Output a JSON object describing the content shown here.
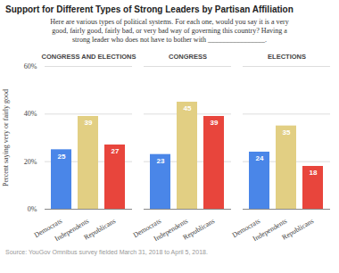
{
  "chart_data": {
    "type": "bar",
    "title": "Support for Different Types of Strong Leaders by Partisan Affiliation",
    "subtitle": "Here are various types of political systems. For each one, would you say it is a very good, fairly good, fairly bad, or very bad way of governing this country? Having a strong leader who does not have to bother with ________________.",
    "y_label": "Percent saying very or fairly good",
    "source": "Source: YouGov Omnibus survey fielded March 31, 2018 to April 5, 2018.",
    "categories": [
      "CONGRESS AND ELECTIONS",
      "CONGRESS",
      "ELECTIONS"
    ],
    "series": [
      {
        "name": "Democrats",
        "color": "#4a86e8",
        "values": [
          25,
          23,
          24
        ]
      },
      {
        "name": "Independents",
        "color": "#e2cf83",
        "values": [
          39,
          45,
          35
        ]
      },
      {
        "name": "Republicans",
        "color": "#e8453c",
        "values": [
          27,
          39,
          18
        ]
      }
    ],
    "ylim": [
      0,
      60
    ],
    "yticks": [
      {
        "value": 0,
        "label": "0%"
      },
      {
        "value": 20,
        "label": "20%"
      },
      {
        "value": 40,
        "label": "40%"
      },
      {
        "value": 60,
        "label": "60%"
      }
    ],
    "grid": true,
    "data_labels": true
  }
}
